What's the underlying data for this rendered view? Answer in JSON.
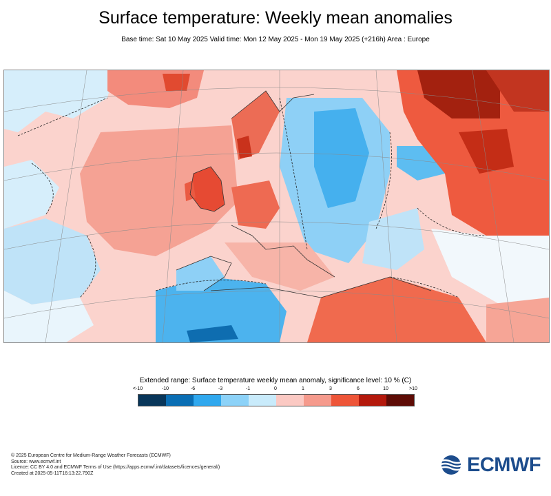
{
  "header": {
    "title": "Surface temperature: Weekly mean anomalies",
    "subtitle": "Base time: Sat 10 May 2025 Valid time: Mon 12 May 2025 - Mon 19 May 2025 (+216h) Area : Europe"
  },
  "legend": {
    "title": "Extended range: Surface temperature weekly mean anomaly, significance level: 10 % (C)",
    "ticks": [
      "<-10",
      "-10",
      "-6",
      "-3",
      "-1",
      "0",
      "1",
      "3",
      "6",
      "10",
      ">10"
    ],
    "colors": [
      "#08365a",
      "#0a6eb4",
      "#30a8ee",
      "#8cd2f8",
      "#c9ebfb",
      "#fbc9c3",
      "#f59a8c",
      "#ee5538",
      "#b4190c",
      "#5e0c06"
    ]
  },
  "footer": {
    "line1": "© 2025 European Centre for Medium-Range Weather Forecasts (ECMWF)",
    "line2": "Source: www.ecmwf.int",
    "line3": "Licence: CC BY 4.0 and ECMWF Terms of Use (https://apps.ecmwf.int/datasets/licences/general/)",
    "line4": "Created at 2025-05-11T16:13:22.790Z"
  },
  "logo": {
    "text": "ECMWF"
  }
}
